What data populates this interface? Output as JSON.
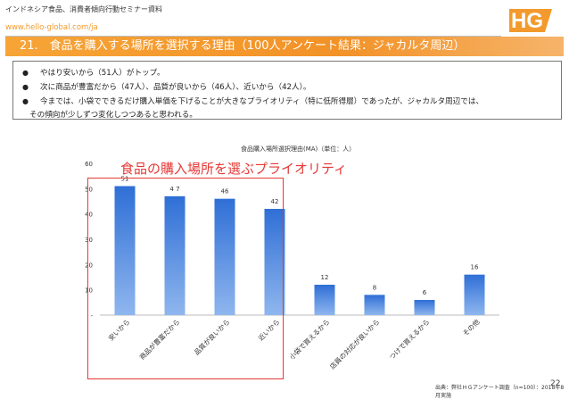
{
  "header": {
    "subtitle": "インドネシア食品、消費者傾向行動セミナー資料",
    "url": "www.hello-global.com/ja",
    "logo_text": "HG"
  },
  "banner": {
    "title": "21.　食品を購入する場所を選択する理由（100人アンケート結果：ジャカルタ周辺）"
  },
  "bullets": {
    "items": [
      "やはり安いから（51人）がトップ。",
      "次に商品が豊富だから（47人）、品質が良いから（46人）、近いから（42人）。",
      "今までは、小袋でできるだけ購入単価を下げることが大きなプライオリティ（特に低所得層）であったが、ジャカルタ周辺では、"
    ],
    "continuation": "その傾向が少しずつ変化しつつあると思われる。"
  },
  "chart_data": {
    "type": "bar",
    "title": "食品購入場所選択理由(MA)（単位：人）",
    "categories": [
      "安いから",
      "商品が豊富だから",
      "品質が良いから",
      "近いから",
      "小袋で買えるから",
      "店員の対応が良いから",
      "つけで買えるから",
      "その他"
    ],
    "values": [
      51,
      47,
      46,
      42,
      12,
      8,
      6,
      16
    ],
    "data_labels": [
      "51",
      "4 7",
      "46",
      "42",
      "12",
      "8",
      "6",
      "16"
    ],
    "ylim": [
      0,
      60
    ],
    "yticks": [
      "-",
      "10",
      "20",
      "30",
      "40",
      "50",
      "60"
    ],
    "grid": false,
    "bar_color": "#4f86d9",
    "highlight_color": "#e53935"
  },
  "annotation": {
    "label": "食品の購入場所を選ぶプライオリティ"
  },
  "footer": {
    "source": "出典：弊社ＨＧアンケート調査（n=100）：2018年8月実施",
    "page": "22"
  }
}
